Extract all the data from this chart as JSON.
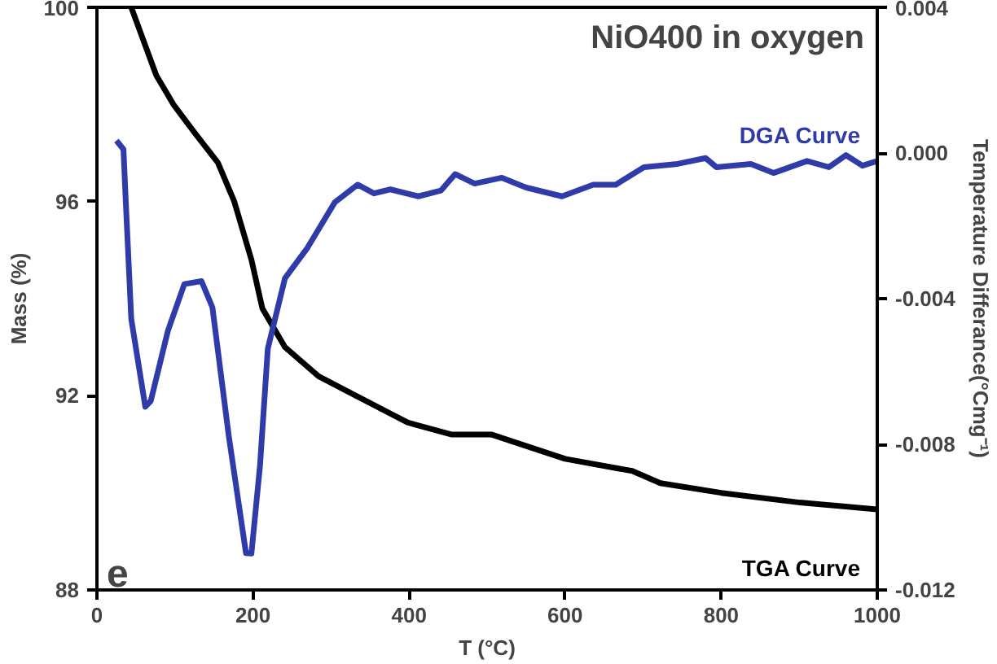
{
  "chart_data": {
    "type": "line",
    "title": "NiO400 in oxygen",
    "xlabel": "T (°C)",
    "ylabel": "Mass (%)",
    "y2label": "Temperature Differance(°Cmg⁻¹)",
    "annotations": [
      "e"
    ],
    "xlim": [
      0,
      1000
    ],
    "xticks": [
      0,
      200,
      400,
      600,
      800,
      1000
    ],
    "ylim": [
      88,
      100
    ],
    "yticks": [
      88,
      92,
      96,
      100
    ],
    "y2lim": [
      -0.012,
      0.004
    ],
    "y2ticks": [
      -0.012,
      -0.008,
      -0.004,
      {
        "value": 0,
        "label": "0.000"
      },
      0.004
    ],
    "grid": false,
    "line_style": "solid",
    "marker": "none",
    "series": [
      {
        "name": "TGA Curve",
        "color": "#000000",
        "x": [
          44,
          76,
          98,
          126,
          155,
          176,
          198,
          212,
          241,
          284,
          326,
          398,
          455,
          506,
          600,
          686,
          722,
          800,
          901,
          1000
        ],
        "values": [
          100,
          98.6,
          98.0,
          97.4,
          96.8,
          96.0,
          94.8,
          93.8,
          93.0,
          92.4,
          92.05,
          91.45,
          91.2,
          91.2,
          90.7,
          90.45,
          90.2,
          90.0,
          89.8,
          89.66
        ]
      },
      {
        "name": "DGA Curve",
        "color": "#2e3ba8",
        "axis": "y2",
        "x": [
          25,
          34,
          37,
          44,
          62,
          69,
          91,
          112,
          134,
          148,
          169,
          191,
          198,
          209,
          219,
          241,
          269,
          305,
          334,
          355,
          376,
          412,
          441,
          459,
          484,
          519,
          550,
          596,
          636,
          665,
          701,
          744,
          780,
          794,
          838,
          867,
          910,
          938,
          960,
          981,
          1000
        ],
        "values": [
          0.00034,
          0.0001,
          -0.00135,
          -0.00456,
          -0.00697,
          -0.00681,
          -0.00488,
          -0.0036,
          -0.00352,
          -0.00424,
          -0.00778,
          -0.01099,
          -0.011,
          -0.00858,
          -0.00537,
          -0.00344,
          -0.00263,
          -0.00135,
          -0.00087,
          -0.00111,
          -0.001,
          -0.00119,
          -0.00103,
          -0.00058,
          -0.00084,
          -0.00068,
          -0.00095,
          -0.00119,
          -0.00087,
          -0.00087,
          -0.00039,
          -0.0003,
          -0.00014,
          -0.00039,
          -0.0003,
          -0.00055,
          -0.00022,
          -0.00039,
          -6e-05,
          -0.00035,
          -0.00022
        ]
      }
    ]
  }
}
